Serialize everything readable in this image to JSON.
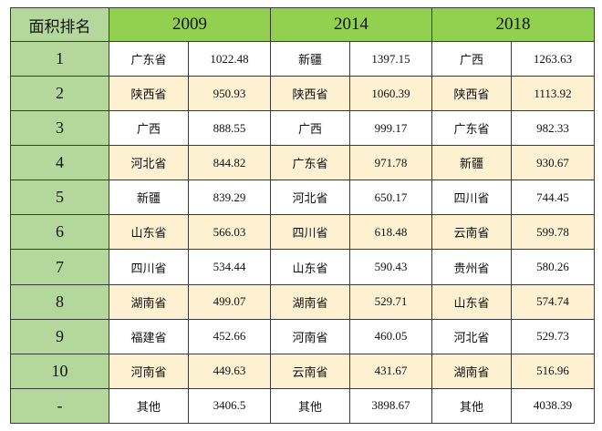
{
  "header": {
    "rank_label": "面积排名",
    "years": [
      "2009",
      "2014",
      "2018"
    ]
  },
  "rows": [
    {
      "rank": "1",
      "cells": [
        [
          "广东省",
          "1022.48"
        ],
        [
          "新疆",
          "1397.15"
        ],
        [
          "广西",
          "1263.63"
        ]
      ]
    },
    {
      "rank": "2",
      "cells": [
        [
          "陕西省",
          "950.93"
        ],
        [
          "陕西省",
          "1060.39"
        ],
        [
          "陕西省",
          "1113.92"
        ]
      ]
    },
    {
      "rank": "3",
      "cells": [
        [
          "广西",
          "888.55"
        ],
        [
          "广西",
          "999.17"
        ],
        [
          "广东省",
          "982.33"
        ]
      ]
    },
    {
      "rank": "4",
      "cells": [
        [
          "河北省",
          "844.82"
        ],
        [
          "广东省",
          "971.78"
        ],
        [
          "新疆",
          "930.67"
        ]
      ]
    },
    {
      "rank": "5",
      "cells": [
        [
          "新疆",
          "839.29"
        ],
        [
          "河北省",
          "650.17"
        ],
        [
          "四川省",
          "744.45"
        ]
      ]
    },
    {
      "rank": "6",
      "cells": [
        [
          "山东省",
          "566.03"
        ],
        [
          "四川省",
          "618.48"
        ],
        [
          "云南省",
          "599.78"
        ]
      ]
    },
    {
      "rank": "7",
      "cells": [
        [
          "四川省",
          "534.44"
        ],
        [
          "山东省",
          "590.43"
        ],
        [
          "贵州省",
          "580.26"
        ]
      ]
    },
    {
      "rank": "8",
      "cells": [
        [
          "湖南省",
          "499.07"
        ],
        [
          "湖南省",
          "529.71"
        ],
        [
          "山东省",
          "574.74"
        ]
      ]
    },
    {
      "rank": "9",
      "cells": [
        [
          "福建省",
          "452.66"
        ],
        [
          "河南省",
          "460.05"
        ],
        [
          "河北省",
          "529.73"
        ]
      ]
    },
    {
      "rank": "10",
      "cells": [
        [
          "河南省",
          "449.63"
        ],
        [
          "云南省",
          "431.67"
        ],
        [
          "湖南省",
          "516.96"
        ]
      ]
    },
    {
      "rank": "-",
      "cells": [
        [
          "其他",
          "3406.5"
        ],
        [
          "其他",
          "3898.67"
        ],
        [
          "其他",
          "4038.39"
        ]
      ]
    }
  ],
  "colors": {
    "header_year": "#92d050",
    "rank_column": "#b4d89c",
    "stripe": "#fdf1d2",
    "border": "#3a3a3a"
  }
}
